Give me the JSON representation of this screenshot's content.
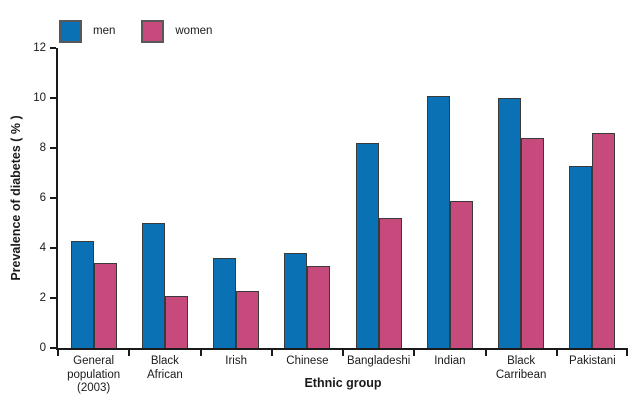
{
  "legend": {
    "items": [
      {
        "label": "men",
        "color": "#0a71b4"
      },
      {
        "label": "women",
        "color": "#c64a7b"
      }
    ]
  },
  "chart_data": {
    "type": "bar",
    "title": "",
    "xlabel": "Ethnic group",
    "ylabel": "Prevalence of diabetes ( % )",
    "ylim": [
      0,
      12
    ],
    "yticks": [
      0,
      2,
      4,
      6,
      8,
      10,
      12
    ],
    "grid": false,
    "legend_position": "top-left",
    "categories": [
      "General population (2003)",
      "Black African",
      "Irish",
      "Chinese",
      "Bangladeshi",
      "Indian",
      "Black Carribean",
      "Pakistani"
    ],
    "category_label_lines": [
      [
        "General",
        "population",
        "(2003)"
      ],
      [
        "Black",
        "African"
      ],
      [
        "Irish"
      ],
      [
        "Chinese"
      ],
      [
        "Bangladeshi"
      ],
      [
        "Indian"
      ],
      [
        "Black",
        "Carribean"
      ],
      [
        "Pakistani"
      ]
    ],
    "series": [
      {
        "name": "men",
        "color": "#0a71b4",
        "values": [
          4.3,
          5.0,
          3.6,
          3.8,
          8.2,
          10.1,
          10.0,
          7.3
        ]
      },
      {
        "name": "women",
        "color": "#c64a7b",
        "values": [
          3.4,
          2.1,
          2.3,
          3.3,
          5.2,
          5.9,
          8.4,
          8.6
        ]
      }
    ]
  }
}
